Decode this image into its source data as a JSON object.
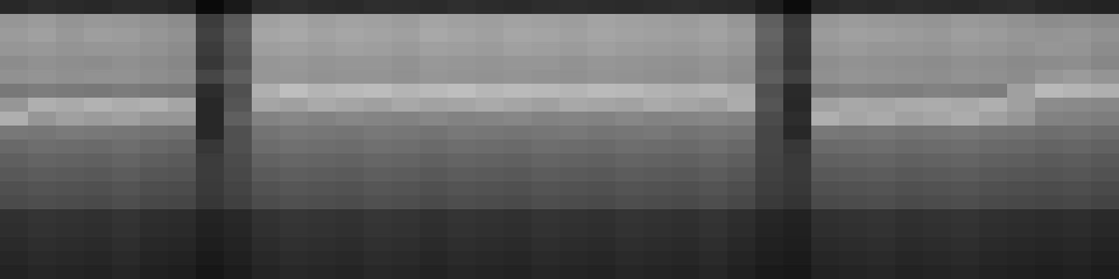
{
  "chart_data": {
    "type": "heatmap",
    "tick_labels": false,
    "zlim": [
      0,
      255
    ],
    "cells": [
      [
        40,
        45,
        42,
        40,
        44,
        43,
        38,
        10,
        25,
        45,
        48,
        44,
        42,
        46,
        45,
        43,
        47,
        44,
        42,
        45,
        46,
        44,
        43,
        45,
        47,
        44,
        42,
        30,
        12,
        40,
        44,
        42,
        45,
        43,
        41,
        44,
        46,
        40,
        38,
        35
      ],
      [
        150,
        155,
        148,
        152,
        150,
        146,
        140,
        60,
        90,
        160,
        165,
        158,
        162,
        160,
        156,
        164,
        160,
        158,
        162,
        160,
        157,
        163,
        160,
        158,
        155,
        160,
        150,
        95,
        55,
        150,
        155,
        152,
        150,
        148,
        153,
        150,
        145,
        140,
        142,
        138
      ],
      [
        155,
        160,
        152,
        158,
        156,
        150,
        145,
        65,
        95,
        165,
        168,
        162,
        166,
        163,
        160,
        168,
        164,
        160,
        166,
        164,
        160,
        165,
        162,
        160,
        158,
        162,
        155,
        100,
        60,
        155,
        160,
        158,
        155,
        152,
        158,
        155,
        150,
        148,
        150,
        145
      ],
      [
        150,
        152,
        148,
        150,
        150,
        146,
        140,
        60,
        90,
        158,
        160,
        156,
        160,
        158,
        154,
        160,
        158,
        155,
        160,
        158,
        155,
        160,
        156,
        154,
        152,
        156,
        150,
        95,
        58,
        150,
        154,
        150,
        150,
        148,
        152,
        150,
        146,
        150,
        148,
        140
      ],
      [
        140,
        145,
        142,
        140,
        144,
        140,
        135,
        55,
        85,
        150,
        152,
        148,
        150,
        150,
        146,
        152,
        150,
        148,
        150,
        150,
        146,
        150,
        148,
        146,
        144,
        148,
        142,
        90,
        55,
        142,
        146,
        144,
        142,
        140,
        144,
        142,
        138,
        140,
        142,
        135
      ],
      [
        145,
        148,
        144,
        146,
        146,
        142,
        138,
        70,
        95,
        150,
        150,
        146,
        148,
        148,
        145,
        150,
        148,
        146,
        148,
        146,
        145,
        148,
        146,
        144,
        142,
        146,
        140,
        95,
        65,
        144,
        148,
        146,
        144,
        142,
        146,
        144,
        140,
        150,
        155,
        148
      ],
      [
        120,
        125,
        122,
        120,
        124,
        120,
        118,
        45,
        80,
        175,
        190,
        180,
        185,
        188,
        180,
        185,
        190,
        182,
        186,
        184,
        180,
        186,
        184,
        178,
        175,
        180,
        170,
        80,
        42,
        125,
        130,
        128,
        126,
        130,
        128,
        125,
        160,
        185,
        180,
        175
      ],
      [
        150,
        175,
        170,
        178,
        172,
        176,
        165,
        40,
        85,
        165,
        160,
        170,
        165,
        160,
        168,
        162,
        165,
        170,
        165,
        160,
        168,
        165,
        162,
        170,
        165,
        160,
        172,
        85,
        40,
        160,
        168,
        165,
        170,
        172,
        168,
        175,
        160,
        140,
        138,
        135
      ],
      [
        175,
        150,
        160,
        155,
        160,
        150,
        150,
        40,
        95,
        130,
        135,
        130,
        135,
        132,
        130,
        135,
        130,
        132,
        135,
        130,
        132,
        130,
        135,
        130,
        132,
        135,
        130,
        75,
        45,
        175,
        165,
        170,
        160,
        165,
        172,
        160,
        150,
        130,
        128,
        125
      ],
      [
        120,
        118,
        122,
        120,
        118,
        115,
        112,
        40,
        80,
        115,
        120,
        118,
        116,
        120,
        118,
        115,
        120,
        118,
        116,
        118,
        120,
        116,
        118,
        120,
        115,
        118,
        115,
        70,
        40,
        120,
        118,
        120,
        116,
        118,
        120,
        116,
        114,
        110,
        112,
        108
      ],
      [
        105,
        110,
        108,
        106,
        110,
        104,
        100,
        55,
        80,
        108,
        112,
        110,
        108,
        112,
        110,
        106,
        110,
        108,
        106,
        110,
        108,
        106,
        110,
        108,
        106,
        110,
        104,
        70,
        55,
        106,
        108,
        110,
        106,
        108,
        110,
        106,
        104,
        100,
        102,
        98
      ],
      [
        95,
        100,
        98,
        96,
        100,
        94,
        90,
        60,
        75,
        98,
        102,
        100,
        98,
        102,
        100,
        96,
        100,
        98,
        96,
        100,
        98,
        96,
        100,
        98,
        96,
        100,
        94,
        68,
        58,
        96,
        98,
        100,
        96,
        98,
        100,
        96,
        94,
        90,
        92,
        88
      ],
      [
        88,
        92,
        90,
        88,
        92,
        86,
        84,
        60,
        72,
        90,
        94,
        92,
        90,
        94,
        92,
        88,
        92,
        90,
        88,
        92,
        90,
        88,
        92,
        90,
        88,
        92,
        86,
        65,
        58,
        88,
        90,
        92,
        88,
        90,
        92,
        88,
        86,
        84,
        86,
        82
      ],
      [
        80,
        84,
        82,
        80,
        84,
        78,
        76,
        58,
        68,
        82,
        86,
        84,
        82,
        86,
        84,
        80,
        84,
        82,
        80,
        84,
        82,
        80,
        84,
        82,
        80,
        84,
        78,
        62,
        56,
        80,
        82,
        84,
        80,
        82,
        84,
        80,
        78,
        76,
        78,
        74
      ],
      [
        75,
        78,
        76,
        74,
        78,
        72,
        70,
        55,
        64,
        76,
        80,
        78,
        76,
        80,
        78,
        74,
        78,
        76,
        74,
        78,
        76,
        74,
        78,
        76,
        74,
        78,
        72,
        58,
        52,
        74,
        76,
        78,
        74,
        76,
        78,
        74,
        72,
        70,
        72,
        68
      ],
      [
        48,
        52,
        50,
        48,
        52,
        46,
        44,
        35,
        40,
        50,
        54,
        52,
        50,
        54,
        52,
        48,
        52,
        50,
        48,
        52,
        50,
        48,
        52,
        50,
        48,
        52,
        46,
        38,
        34,
        48,
        50,
        52,
        48,
        50,
        52,
        48,
        46,
        44,
        46,
        42
      ],
      [
        46,
        50,
        48,
        46,
        50,
        44,
        42,
        33,
        38,
        48,
        52,
        50,
        48,
        52,
        50,
        46,
        50,
        48,
        46,
        50,
        48,
        46,
        50,
        48,
        46,
        50,
        44,
        36,
        32,
        46,
        48,
        50,
        46,
        48,
        50,
        46,
        44,
        42,
        44,
        40
      ],
      [
        42,
        46,
        44,
        42,
        46,
        40,
        38,
        30,
        35,
        44,
        48,
        46,
        44,
        48,
        46,
        42,
        46,
        44,
        42,
        46,
        44,
        42,
        46,
        44,
        42,
        46,
        40,
        33,
        30,
        42,
        44,
        46,
        42,
        44,
        46,
        42,
        40,
        38,
        40,
        36
      ],
      [
        38,
        42,
        40,
        38,
        42,
        36,
        34,
        26,
        32,
        40,
        44,
        42,
        40,
        44,
        42,
        38,
        42,
        40,
        38,
        42,
        40,
        38,
        42,
        40,
        38,
        42,
        36,
        30,
        27,
        38,
        40,
        42,
        38,
        40,
        42,
        38,
        36,
        34,
        36,
        32
      ],
      [
        34,
        38,
        36,
        34,
        38,
        32,
        30,
        22,
        28,
        36,
        40,
        38,
        36,
        40,
        38,
        34,
        38,
        36,
        34,
        38,
        36,
        34,
        38,
        36,
        34,
        38,
        32,
        26,
        24,
        34,
        36,
        38,
        34,
        36,
        38,
        34,
        32,
        30,
        32,
        28
      ]
    ]
  }
}
